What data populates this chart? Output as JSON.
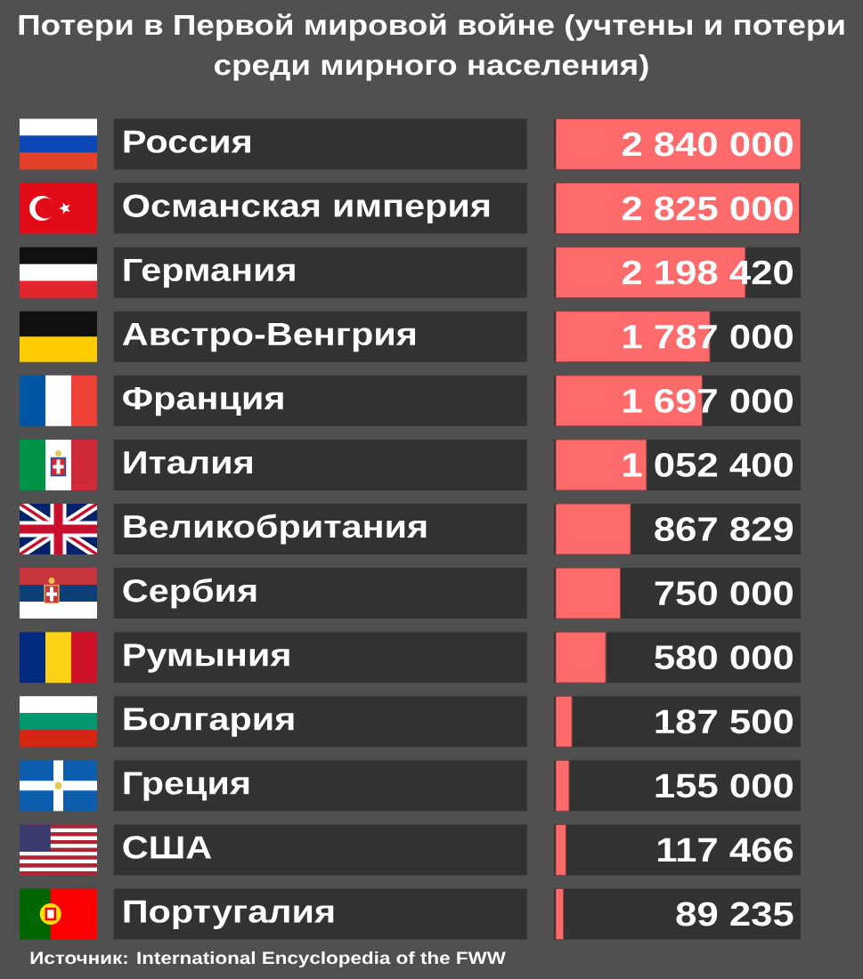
{
  "chart_data": {
    "type": "bar",
    "orientation": "horizontal",
    "title": "Потери в Первой мировой войне (учтены и потери среди мирного населения)",
    "categories": [
      "Россия",
      "Османская империя",
      "Германия",
      "Австро-Венгрия",
      "Франция",
      "Италия",
      "Великобритания",
      "Сербия",
      "Румыния",
      "Болгария",
      "Греция",
      "США",
      "Португалия"
    ],
    "values": [
      2840000,
      2825000,
      2198420,
      1787000,
      1697000,
      1052400,
      867829,
      750000,
      580000,
      187500,
      155000,
      117466,
      89235
    ],
    "value_labels": [
      "2 840 000",
      "2 825 000",
      "2 198 420",
      "1 787 000",
      "1 697 000",
      "1 052 400",
      "867 829",
      "750 000",
      "580 000",
      "187 500",
      "155 000",
      "117 466",
      "89 235"
    ],
    "color": "#ff6b6b",
    "tick_labels": "y",
    "annotations": [
      "Источник: International Encyclopedia of the FWW"
    ]
  }
}
